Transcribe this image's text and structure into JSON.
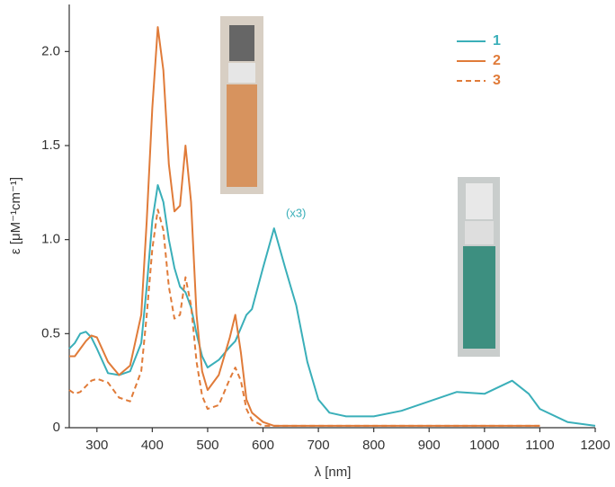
{
  "chart_data": {
    "type": "line",
    "x_label": "λ [nm]",
    "y_label": "ε [μM⁻¹cm⁻¹]",
    "annotation": "(x3)",
    "x": [
      250,
      260,
      270,
      280,
      290,
      300,
      320,
      340,
      360,
      380,
      390,
      400,
      410,
      420,
      430,
      440,
      450,
      460,
      470,
      480,
      490,
      500,
      520,
      540,
      550,
      560,
      570,
      580,
      600,
      620,
      640,
      650,
      660,
      680,
      700,
      720,
      750,
      800,
      850,
      900,
      950,
      1000,
      1050,
      1080,
      1100,
      1150,
      1200
    ],
    "series": [
      {
        "name": "1",
        "color": "#3aafb9",
        "dashed": false,
        "values": [
          0.42,
          0.45,
          0.5,
          0.51,
          0.48,
          0.42,
          0.29,
          0.28,
          0.3,
          0.45,
          0.75,
          1.1,
          1.29,
          1.2,
          1.0,
          0.85,
          0.75,
          0.72,
          0.64,
          0.5,
          0.38,
          0.32,
          0.36,
          0.43,
          0.46,
          0.53,
          0.6,
          0.63,
          0.85,
          1.06,
          0.85,
          0.75,
          0.65,
          0.35,
          0.15,
          0.08,
          0.06,
          0.06,
          0.09,
          0.14,
          0.19,
          0.18,
          0.25,
          0.18,
          0.1,
          0.03,
          0.01
        ]
      },
      {
        "name": "2",
        "color": "#e07b39",
        "dashed": false,
        "values": [
          0.38,
          0.38,
          0.42,
          0.46,
          0.49,
          0.48,
          0.35,
          0.28,
          0.33,
          0.6,
          1.1,
          1.7,
          2.13,
          1.9,
          1.4,
          1.15,
          1.18,
          1.5,
          1.2,
          0.6,
          0.3,
          0.2,
          0.28,
          0.48,
          0.6,
          0.4,
          0.15,
          0.08,
          0.03,
          0.01,
          0.01,
          0.01,
          0.01,
          0.01,
          0.01,
          0.01,
          0.01,
          0.01,
          0.01,
          0.01,
          0.01,
          0.01,
          0.01,
          0.01,
          0.01,
          null,
          null
        ]
      },
      {
        "name": "3",
        "color": "#e07b39",
        "dashed": true,
        "values": [
          0.2,
          0.18,
          0.19,
          0.22,
          0.25,
          0.26,
          0.24,
          0.16,
          0.14,
          0.3,
          0.6,
          0.95,
          1.16,
          1.05,
          0.75,
          0.58,
          0.6,
          0.8,
          0.65,
          0.35,
          0.17,
          0.1,
          0.12,
          0.26,
          0.32,
          0.25,
          0.1,
          0.04,
          0.01,
          0.01,
          0.01,
          0.01,
          0.01,
          0.01,
          0.01,
          0.01,
          0.01,
          0.01,
          0.01,
          0.01,
          0.01,
          0.01,
          0.01,
          0.01,
          0.01,
          null,
          null
        ]
      }
    ],
    "xlim": [
      250,
      1200
    ],
    "xticks": [
      300,
      400,
      500,
      600,
      700,
      800,
      900,
      1000,
      1100,
      1200
    ],
    "ylim": [
      0,
      2.25
    ],
    "yticks": [
      0,
      0.5,
      {
        "value": 1,
        "label": "1.0"
      },
      1.5,
      {
        "value": 2,
        "label": "2.0"
      }
    ],
    "legend": "top-right",
    "grid": false
  }
}
